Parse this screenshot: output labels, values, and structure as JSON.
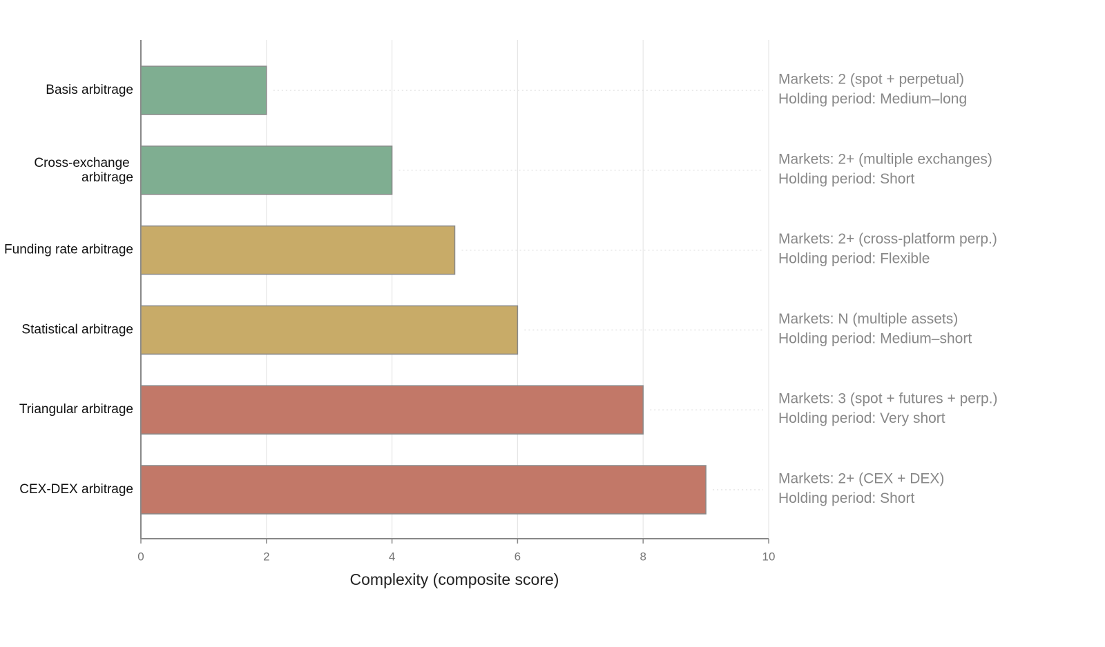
{
  "chart_data": {
    "type": "hbar",
    "xlabel": "Complexity (composite score)",
    "categories": [
      "Basis arbitrage",
      "Cross-exchange arbitrage",
      "Funding rate arbitrage",
      "Statistical arbitrage",
      "Triangular arbitrage",
      "CEX-DEX arbitrage"
    ],
    "values": [
      2,
      4,
      5,
      6,
      8,
      9
    ],
    "colors": [
      "#7fae91",
      "#7fae91",
      "#c8ab68",
      "#c8ab68",
      "#c27868",
      "#c27868"
    ],
    "annotations": [
      [
        "Markets: 2 (spot + perpetual)",
        "Holding period: Medium–long"
      ],
      [
        "Markets: 2+ (multiple exchanges)",
        "Holding period: Short"
      ],
      [
        "Markets: 2+ (cross-platform perp.)",
        "Holding period: Flexible"
      ],
      [
        "Markets: N (multiple assets)",
        "Holding period: Medium–short"
      ],
      [
        "Markets: 3 (spot + futures + perp.)",
        "Holding period: Very short"
      ],
      [
        "Markets: 2+ (CEX + DEX)",
        "Holding period: Short"
      ]
    ],
    "xlim": [
      0,
      10
    ],
    "xticks": [
      0,
      2,
      4,
      6,
      8,
      10
    ],
    "grid": true
  }
}
